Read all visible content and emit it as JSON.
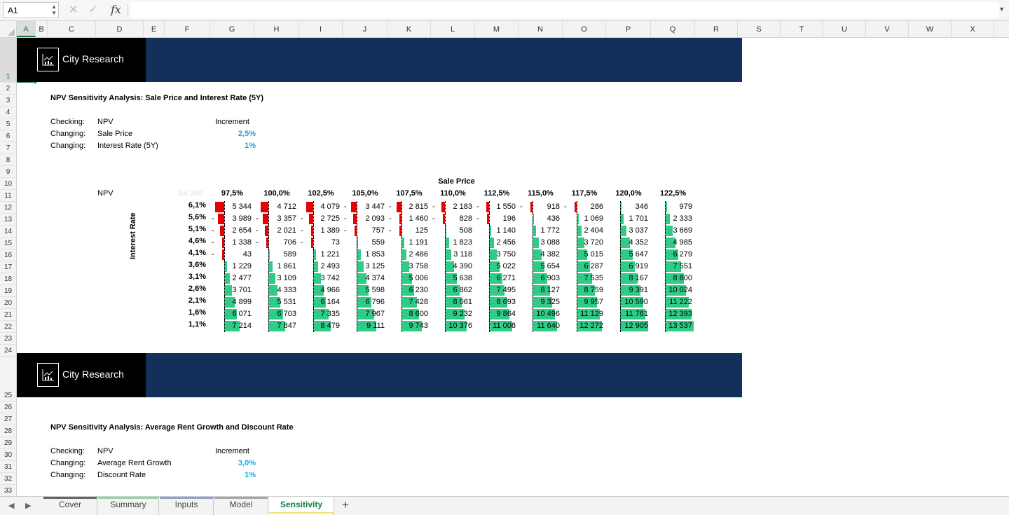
{
  "formula_bar": {
    "name_box": "A1",
    "formula": ""
  },
  "columns": [
    "A",
    "B",
    "C",
    "D",
    "E",
    "F",
    "G",
    "H",
    "I",
    "J",
    "K",
    "L",
    "M",
    "N",
    "O",
    "P",
    "Q",
    "R",
    "S",
    "T",
    "U",
    "V",
    "W",
    "X"
  ],
  "selected_column": "A",
  "rows": [
    "1",
    "2",
    "3",
    "4",
    "5",
    "6",
    "7",
    "8",
    "9",
    "10",
    "11",
    "12",
    "13",
    "14",
    "15",
    "16",
    "17",
    "18",
    "19",
    "20",
    "21",
    "22",
    "23",
    "24",
    "25",
    "26",
    "27",
    "28",
    "29",
    "30",
    "31",
    "32",
    "33"
  ],
  "selected_row": "1",
  "banner": {
    "brand": "City Research"
  },
  "section1": {
    "title": "NPV Sensitivity Analysis: Sale Price and Interest Rate (5Y)",
    "checking_label": "Checking:",
    "checking_value": "NPV",
    "increment_label": "Increment",
    "changing1_label": "Changing:",
    "changing1_value": "Sale Price",
    "changing1_increment": "2,5%",
    "changing2_label": "Changing:",
    "changing2_value": "Interest Rate (5Y)",
    "changing2_increment": "1%"
  },
  "table": {
    "col_title": "Sale Price",
    "row_title": "Interest Rate",
    "corner_label": "NPV",
    "corner_value": "£4 390",
    "columns": [
      "97,5%",
      "100,0%",
      "102,5%",
      "105,0%",
      "107,5%",
      "110,0%",
      "112,5%",
      "115,0%",
      "117,5%",
      "120,0%",
      "122,5%"
    ],
    "rows": [
      "6,1%",
      "5,6%",
      "5,1%",
      "4,6%",
      "4,1%",
      "3,6%",
      "3,1%",
      "2,6%",
      "2,1%",
      "1,6%",
      "1,1%"
    ],
    "values": [
      [
        -5344,
        -4712,
        -4079,
        -3447,
        -2815,
        -2183,
        -1550,
        -918,
        -286,
        346,
        979
      ],
      [
        -3989,
        -3357,
        -2725,
        -2093,
        -1460,
        -828,
        -196,
        436,
        1069,
        1701,
        2333
      ],
      [
        -2654,
        -2021,
        -1389,
        -757,
        -125,
        508,
        1140,
        1772,
        2404,
        3037,
        3669
      ],
      [
        -1338,
        -706,
        -73,
        559,
        1191,
        1823,
        2456,
        3088,
        3720,
        4352,
        4985
      ],
      [
        -43,
        589,
        1221,
        1853,
        2486,
        3118,
        3750,
        4382,
        5015,
        5647,
        6279
      ],
      [
        1229,
        1861,
        2493,
        3125,
        3758,
        4390,
        5022,
        5654,
        6287,
        6919,
        7551
      ],
      [
        2477,
        3109,
        3742,
        4374,
        5006,
        5638,
        6271,
        6903,
        7535,
        8167,
        8800
      ],
      [
        3701,
        4333,
        4966,
        5598,
        6230,
        6862,
        7495,
        8127,
        8759,
        9391,
        10024
      ],
      [
        4899,
        5531,
        6164,
        6796,
        7428,
        8061,
        8693,
        9325,
        9957,
        10590,
        11222
      ],
      [
        6071,
        6703,
        7335,
        7967,
        8600,
        9232,
        9864,
        10496,
        11129,
        11761,
        12393
      ],
      [
        7214,
        7847,
        8479,
        9111,
        9743,
        10376,
        11008,
        11640,
        12272,
        12905,
        13537
      ]
    ],
    "positive_color": "#2ecc87",
    "negative_color": "#e60000"
  },
  "section2": {
    "title": "NPV Sensitivity Analysis: Average Rent Growth and Discount Rate",
    "checking_label": "Checking:",
    "checking_value": "NPV",
    "increment_label": "Increment",
    "changing1_label": "Changing:",
    "changing1_value": "Average Rent Growth",
    "changing1_increment": "3,0%",
    "changing2_label": "Changing:",
    "changing2_value": "Discount Rate",
    "changing2_increment": "1%"
  },
  "tabs": [
    {
      "label": "Cover",
      "color": "#666666"
    },
    {
      "label": "Summary",
      "color": "#8fd9a8"
    },
    {
      "label": "Inputs",
      "color": "#8aa6c8"
    },
    {
      "label": "Model",
      "color": "#a8a8a8"
    },
    {
      "label": "Sensitivity",
      "color": "#e8e46a"
    }
  ],
  "active_tab": "Sensitivity",
  "icons": {
    "namebox_dropdown": "updown-icon",
    "cancel": "x-icon",
    "enter": "check-icon",
    "function": "fx-icon",
    "add_sheet": "plus-icon"
  }
}
